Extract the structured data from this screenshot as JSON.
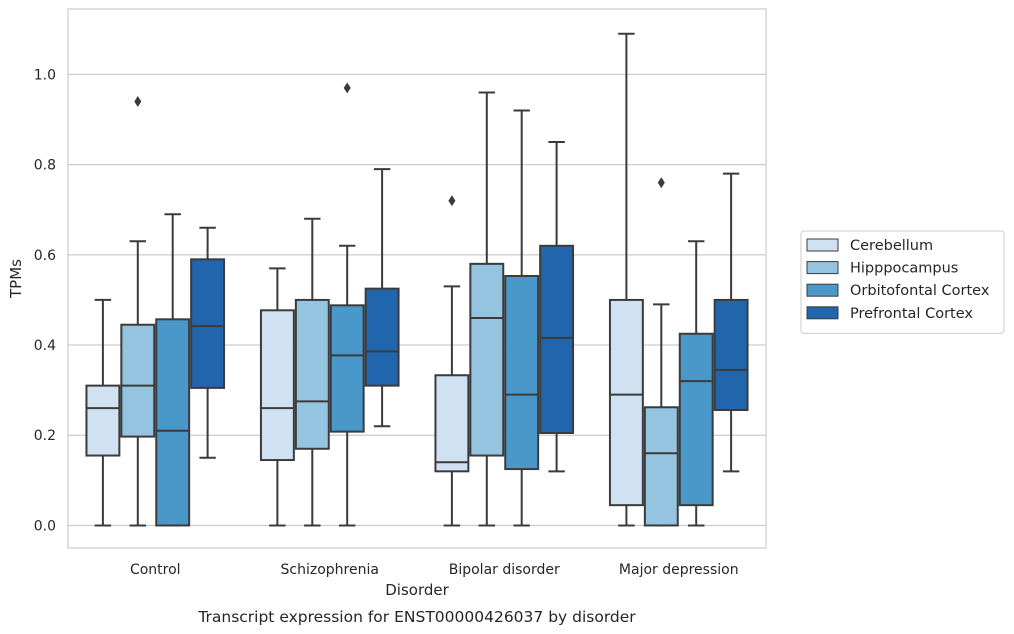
{
  "chart_data": {
    "type": "box",
    "title": "",
    "caption": "Transcript expression for ENST00000426037 by disorder",
    "xlabel": "Disorder",
    "ylabel": "TPMs",
    "categories": [
      "Control",
      "Schizophrenia",
      "Bipolar disorder",
      "Major depression"
    ],
    "ylim": [
      -0.05,
      1.145
    ],
    "yticks": [
      0.0,
      0.2,
      0.4,
      0.6,
      0.8,
      1.0
    ],
    "ytick_labels": [
      "0.0",
      "0.2",
      "0.4",
      "0.6",
      "0.8",
      "1.0"
    ],
    "grid": "horizontal",
    "legend_position": "right",
    "series": [
      {
        "name": "Cerebellum",
        "color": "#d0e1f2",
        "boxes": [
          {
            "whislo": 0.0,
            "q1": 0.155,
            "med": 0.26,
            "q3": 0.31,
            "whishi": 0.5,
            "fliers": []
          },
          {
            "whislo": 0.0,
            "q1": 0.145,
            "med": 0.26,
            "q3": 0.477,
            "whishi": 0.57,
            "fliers": []
          },
          {
            "whislo": 0.0,
            "q1": 0.12,
            "med": 0.14,
            "q3": 0.333,
            "whishi": 0.53,
            "fliers": [
              0.72
            ]
          },
          {
            "whislo": 0.0,
            "q1": 0.045,
            "med": 0.29,
            "q3": 0.5,
            "whishi": 1.09,
            "fliers": []
          }
        ]
      },
      {
        "name": "Hipppocampus",
        "color": "#94c4df",
        "boxes": [
          {
            "whislo": 0.0,
            "q1": 0.197,
            "med": 0.31,
            "q3": 0.445,
            "whishi": 0.63,
            "fliers": [
              0.94
            ]
          },
          {
            "whislo": 0.0,
            "q1": 0.17,
            "med": 0.275,
            "q3": 0.5,
            "whishi": 0.68,
            "fliers": []
          },
          {
            "whislo": 0.0,
            "q1": 0.155,
            "med": 0.46,
            "q3": 0.58,
            "whishi": 0.96,
            "fliers": []
          },
          {
            "whislo": 0.0,
            "q1": 0.0,
            "med": 0.16,
            "q3": 0.262,
            "whishi": 0.49,
            "fliers": [
              0.76
            ]
          }
        ]
      },
      {
        "name": "Orbitofontal Cortex",
        "color": "#4a98c9",
        "boxes": [
          {
            "whislo": 0.0,
            "q1": 0.0,
            "med": 0.21,
            "q3": 0.457,
            "whishi": 0.69,
            "fliers": []
          },
          {
            "whislo": 0.0,
            "q1": 0.208,
            "med": 0.377,
            "q3": 0.488,
            "whishi": 0.62,
            "fliers": [
              0.97
            ]
          },
          {
            "whislo": 0.0,
            "q1": 0.125,
            "med": 0.29,
            "q3": 0.553,
            "whishi": 0.92,
            "fliers": []
          },
          {
            "whislo": 0.0,
            "q1": 0.045,
            "med": 0.32,
            "q3": 0.425,
            "whishi": 0.63,
            "fliers": []
          }
        ]
      },
      {
        "name": "Prefrontal Cortex",
        "color": "#2166ac",
        "boxes": [
          {
            "whislo": 0.15,
            "q1": 0.305,
            "med": 0.442,
            "q3": 0.59,
            "whishi": 0.66,
            "fliers": []
          },
          {
            "whislo": 0.22,
            "q1": 0.31,
            "med": 0.386,
            "q3": 0.525,
            "whishi": 0.79,
            "fliers": []
          },
          {
            "whislo": 0.12,
            "q1": 0.205,
            "med": 0.416,
            "q3": 0.62,
            "whishi": 0.85,
            "fliers": []
          },
          {
            "whislo": 0.12,
            "q1": 0.256,
            "med": 0.345,
            "q3": 0.5,
            "whishi": 0.78,
            "fliers": []
          }
        ]
      }
    ]
  }
}
